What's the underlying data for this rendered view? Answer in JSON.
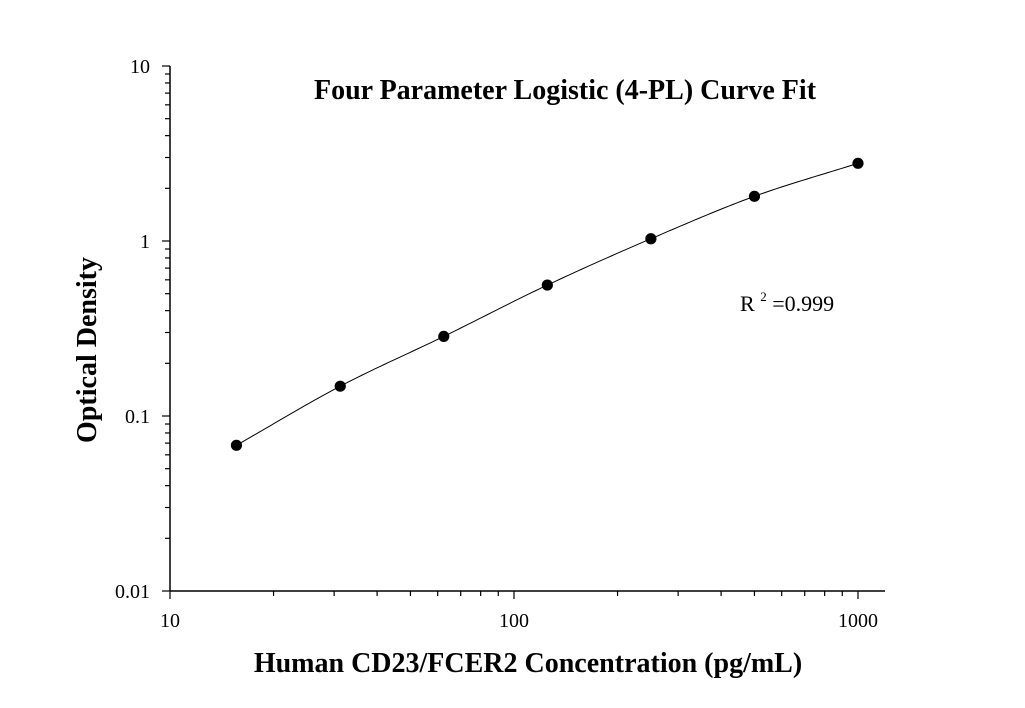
{
  "chart_data": {
    "type": "scatter",
    "title": "Four Parameter Logistic (4-PL) Curve Fit",
    "xlabel": "Human CD23/FCER2 Concentration (pg/mL)",
    "ylabel": "Optical Density",
    "xscale": "log",
    "yscale": "log",
    "xlim": [
      10,
      1200
    ],
    "ylim": [
      0.01,
      10
    ],
    "x_ticks": [
      "10",
      "100",
      "1000"
    ],
    "y_ticks": [
      "0.01",
      "0.1",
      "1",
      "10"
    ],
    "grid": false,
    "legend": "none",
    "annotation": {
      "prefix": "R",
      "superscript": "2",
      "suffix": "=0.999"
    },
    "series": [
      {
        "x": [
          15.6,
          31.25,
          62.5,
          125,
          250,
          500,
          1000
        ],
        "y": [
          0.068,
          0.148,
          0.285,
          0.56,
          1.03,
          1.8,
          2.78
        ],
        "marker": "circle",
        "color": "#000000"
      }
    ],
    "fit_curve": {
      "model": "4-PL",
      "color": "#000000",
      "x_range": [
        15.6,
        1000
      ]
    }
  }
}
